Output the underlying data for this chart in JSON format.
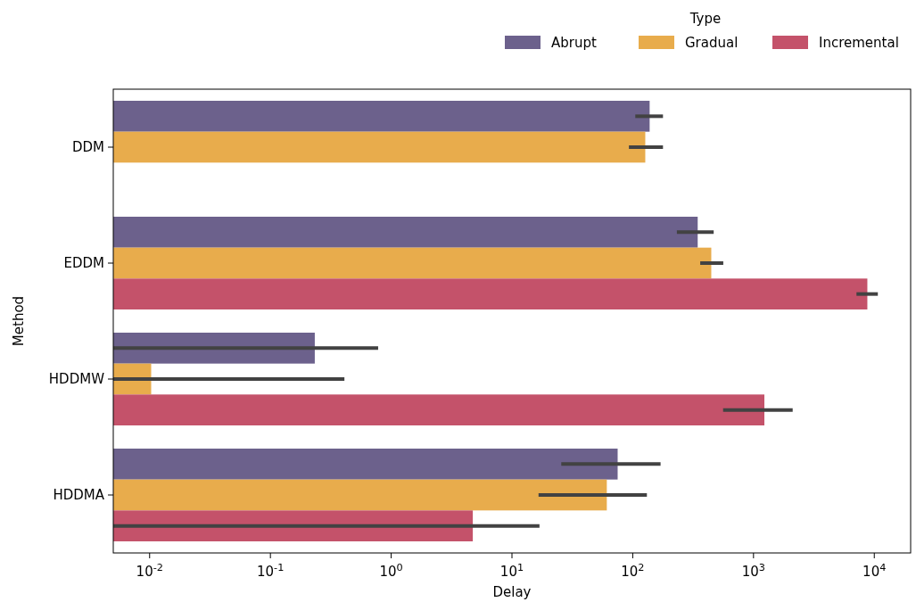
{
  "chart_data": {
    "type": "bar",
    "orientation": "horizontal",
    "log": "x",
    "xlabel": "Delay",
    "ylabel": "Method",
    "legend_title": "Type",
    "legend": "top right",
    "grid": false,
    "categories": [
      "DDM",
      "EDDM",
      "HDDMW",
      "HDDMA"
    ],
    "xlim": [
      0.005,
      20000
    ],
    "xticks": [
      {
        "value": 0.01,
        "label": "10$^{-2}$"
      },
      {
        "value": 0.1,
        "label": "10$^{-1}$"
      },
      {
        "value": 1,
        "label": "10$^{0}$"
      },
      {
        "value": 10,
        "label": "10$^{1}$"
      },
      {
        "value": 100,
        "label": "10$^{2}$"
      },
      {
        "value": 1000,
        "label": "10$^{3}$"
      },
      {
        "value": 10000,
        "label": "10$^{4}$"
      }
    ],
    "series": [
      {
        "name": "Abrupt",
        "color": "#6c618c",
        "values": [
          138,
          345,
          0.233,
          75
        ],
        "errors": [
          [
            105,
            178
          ],
          [
            232,
            468
          ],
          [
            0.005,
            0.78
          ],
          [
            25.6,
            170
          ]
        ]
      },
      {
        "name": "Gradual",
        "color": "#e8ac4c",
        "values": [
          127,
          447,
          0.0103,
          61
        ],
        "errors": [
          [
            93,
            178
          ],
          [
            362,
            562
          ],
          [
            0.005,
            0.41
          ],
          [
            16.6,
            131
          ]
        ]
      },
      {
        "name": "Incremental",
        "color": "#c4526a",
        "values": [
          null,
          8760,
          1230,
          4.74
        ],
        "errors": [
          null,
          [
            7120,
            10700
          ],
          [
            560,
            2110
          ],
          [
            0.005,
            16.9
          ]
        ]
      }
    ]
  }
}
